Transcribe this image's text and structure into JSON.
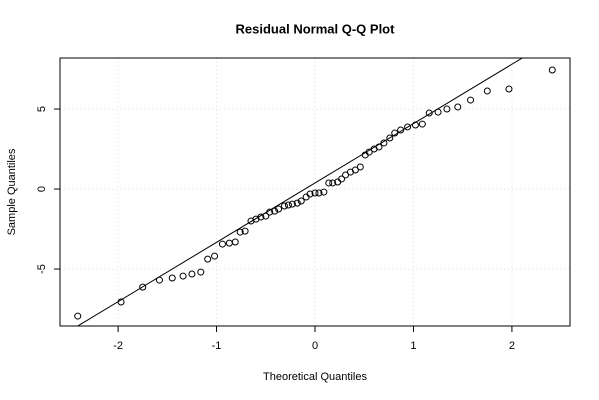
{
  "chart_data": {
    "type": "scatter",
    "title": "Residual Normal Q-Q Plot",
    "x_label": "Theoretical Quantiles",
    "y_label": "Sample Quantiles",
    "xlim": [
      -2.59,
      2.59
    ],
    "ylim": [
      -8.56,
      8.19
    ],
    "xticks": [
      -2,
      -1,
      0,
      1,
      2
    ],
    "yticks": [
      -5,
      0,
      5
    ],
    "grid": true,
    "reference_line": {
      "intercept": 0.38,
      "slope": 3.71,
      "color": "#000000"
    },
    "series": [
      {
        "color": "#000000",
        "x": [
          -2.41,
          -1.97,
          -1.75,
          -1.58,
          -1.45,
          -1.34,
          -1.25,
          -1.16,
          -1.09,
          -1.02,
          -0.94,
          -0.87,
          -0.81,
          -0.76,
          -0.71,
          -0.65,
          -0.6,
          -0.55,
          -0.5,
          -0.46,
          -0.41,
          -0.37,
          -0.31,
          -0.27,
          -0.23,
          -0.18,
          -0.14,
          -0.09,
          -0.05,
          0,
          0.04,
          0.09,
          0.14,
          0.18,
          0.23,
          0.27,
          0.31,
          0.36,
          0.41,
          0.46,
          0.51,
          0.55,
          0.6,
          0.65,
          0.7,
          0.76,
          0.81,
          0.87,
          0.94,
          1.02,
          1.09,
          1.16,
          1.25,
          1.34,
          1.45,
          1.58,
          1.75,
          1.97,
          2.41
        ],
        "values": [
          -7.94,
          -7.06,
          -6.13,
          -5.69,
          -5.56,
          -5.44,
          -5.31,
          -5.19,
          -4.38,
          -4.19,
          -3.44,
          -3.38,
          -3.31,
          -2.69,
          -2.63,
          -2,
          -1.88,
          -1.75,
          -1.69,
          -1.44,
          -1.38,
          -1.25,
          -1.06,
          -1,
          -0.94,
          -0.88,
          -0.75,
          -0.5,
          -0.31,
          -0.25,
          -0.25,
          -0.19,
          0.38,
          0.38,
          0.44,
          0.63,
          0.88,
          1.06,
          1.19,
          1.38,
          2.13,
          2.31,
          2.5,
          2.63,
          2.88,
          3.19,
          3.5,
          3.69,
          3.88,
          4,
          4.06,
          4.75,
          4.81,
          5,
          5.13,
          5.56,
          6.13,
          6.25,
          7.44
        ]
      }
    ]
  }
}
